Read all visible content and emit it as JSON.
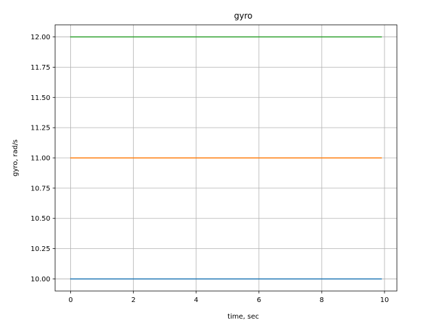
{
  "chart_data": {
    "type": "line",
    "title": "gyro",
    "xlabel": "time, sec",
    "ylabel": "gyro, rad/s",
    "xlim": [
      -0.495,
      10.395
    ],
    "ylim": [
      9.9,
      12.1
    ],
    "xticks": [
      0,
      2,
      4,
      6,
      8,
      10
    ],
    "xtick_labels": [
      "0",
      "2",
      "4",
      "6",
      "8",
      "10"
    ],
    "yticks": [
      10.0,
      10.25,
      10.5,
      10.75,
      11.0,
      11.25,
      11.5,
      11.75,
      12.0
    ],
    "ytick_labels": [
      "10.00",
      "10.25",
      "10.50",
      "10.75",
      "11.00",
      "11.25",
      "11.50",
      "11.75",
      "12.00"
    ],
    "grid": true,
    "legend": "none",
    "series": [
      {
        "x": [
          0,
          9.9
        ],
        "values": [
          10.0,
          10.0
        ],
        "color": "#1f77b4"
      },
      {
        "x": [
          0,
          9.9
        ],
        "values": [
          11.0,
          11.0
        ],
        "color": "#ff7f0e"
      },
      {
        "x": [
          0,
          9.9
        ],
        "values": [
          12.0,
          12.0
        ],
        "color": "#2ca02c"
      }
    ]
  }
}
